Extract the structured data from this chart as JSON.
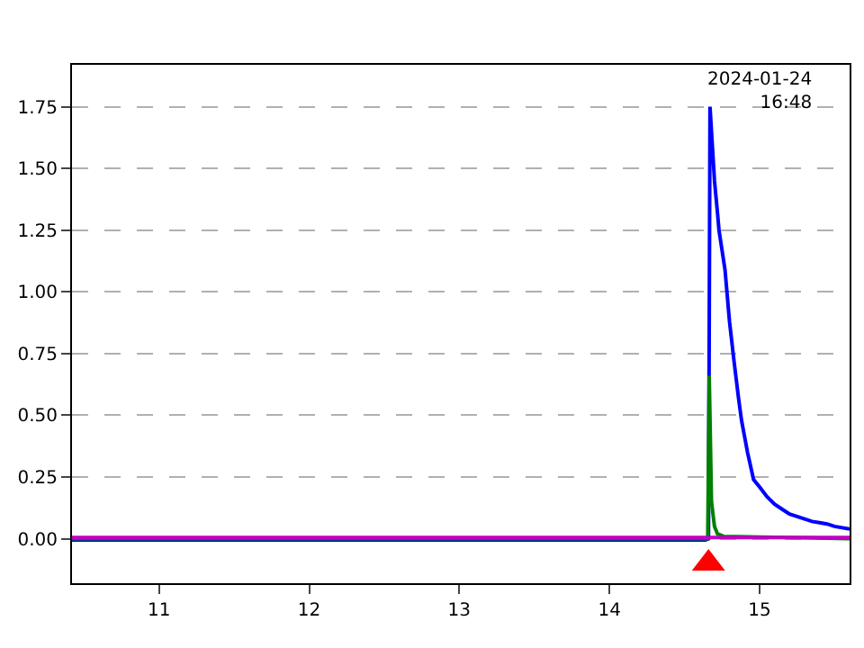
{
  "chart_data": {
    "type": "line",
    "xlim": [
      10.42,
      15.6
    ],
    "ylim": [
      -0.18,
      1.92
    ],
    "xticks": [
      11,
      12,
      13,
      14,
      15
    ],
    "yticks": [
      {
        "value": 0,
        "label": "0.00"
      },
      {
        "value": 0.25,
        "label": "0.25"
      },
      {
        "value": 0.5,
        "label": "0.50"
      },
      {
        "value": 0.75,
        "label": "0.75"
      },
      {
        "value": 1.0,
        "label": "1.00"
      },
      {
        "value": 1.25,
        "label": "1.25"
      },
      {
        "value": 1.5,
        "label": "1.50"
      },
      {
        "value": 1.75,
        "label": "1.75"
      }
    ],
    "grid": "y",
    "legend": false,
    "marker": "none",
    "line_style": "solid",
    "series": [
      {
        "color": "#0000ff",
        "x": [
          10.42,
          11.5,
          12.5,
          13.5,
          14.64,
          14.66,
          14.67,
          14.7,
          14.72,
          14.73,
          14.77,
          14.8,
          14.83,
          14.86,
          14.88,
          14.92,
          14.96,
          15.0,
          15.05,
          15.1,
          15.15,
          15.2,
          15.25,
          15.3,
          15.35,
          15.4,
          15.45,
          15.5,
          15.6
        ],
        "values": [
          -0.005,
          -0.005,
          -0.005,
          -0.005,
          -0.005,
          0.0,
          1.75,
          1.45,
          1.32,
          1.25,
          1.09,
          0.88,
          0.72,
          0.57,
          0.48,
          0.35,
          0.24,
          0.21,
          0.17,
          0.14,
          0.12,
          0.1,
          0.09,
          0.08,
          0.07,
          0.065,
          0.06,
          0.05,
          0.04
        ]
      },
      {
        "color": "#008000",
        "x": [
          10.42,
          14.64,
          14.655,
          14.665,
          14.68,
          14.7,
          14.72,
          14.76,
          15.6
        ],
        "values": [
          0.0,
          0.0,
          0.0,
          0.66,
          0.15,
          0.05,
          0.02,
          0.01,
          0.0
        ]
      },
      {
        "color": "#c000c0",
        "x": [
          10.42,
          15.6
        ],
        "values": [
          0.005,
          0.005
        ]
      },
      {
        "type": "scatter",
        "marker": "triangle",
        "color": "#ff0000",
        "x": [
          14.66
        ],
        "values": [
          -0.1
        ]
      }
    ],
    "annotations": [
      "2024-01-24\n16:48"
    ]
  }
}
